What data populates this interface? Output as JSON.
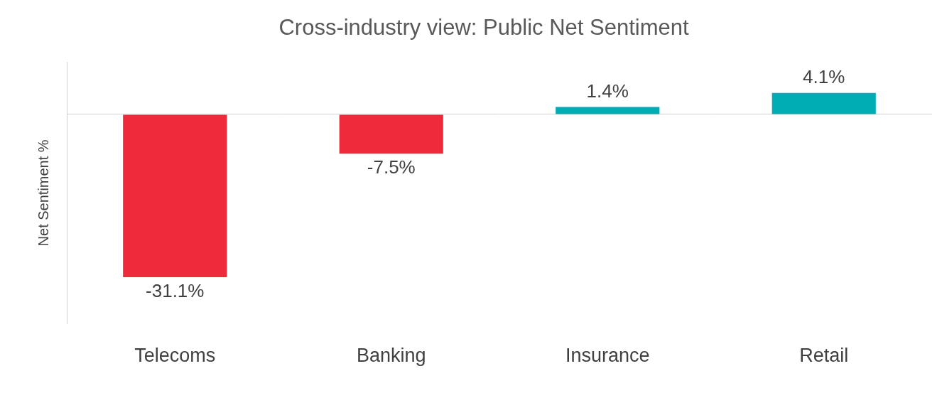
{
  "chart_data": {
    "type": "bar",
    "title": "Cross-industry view: Public Net Sentiment",
    "y_label": "Net Sentiment %",
    "categories": [
      "Telecoms",
      "Banking",
      "Insurance",
      "Retail"
    ],
    "values": [
      -31.1,
      -7.5,
      1.4,
      4.1
    ],
    "value_labels": [
      "-31.1%",
      "-7.5%",
      "1.4%",
      "4.1%"
    ],
    "colors": [
      "#ee2a3b",
      "#ee2a3b",
      "#00adb5",
      "#00adb5"
    ],
    "ylim": [
      -40,
      10
    ],
    "yticks": [
      0
    ],
    "grid": true,
    "data_labels": true,
    "tick_labels": "x"
  }
}
